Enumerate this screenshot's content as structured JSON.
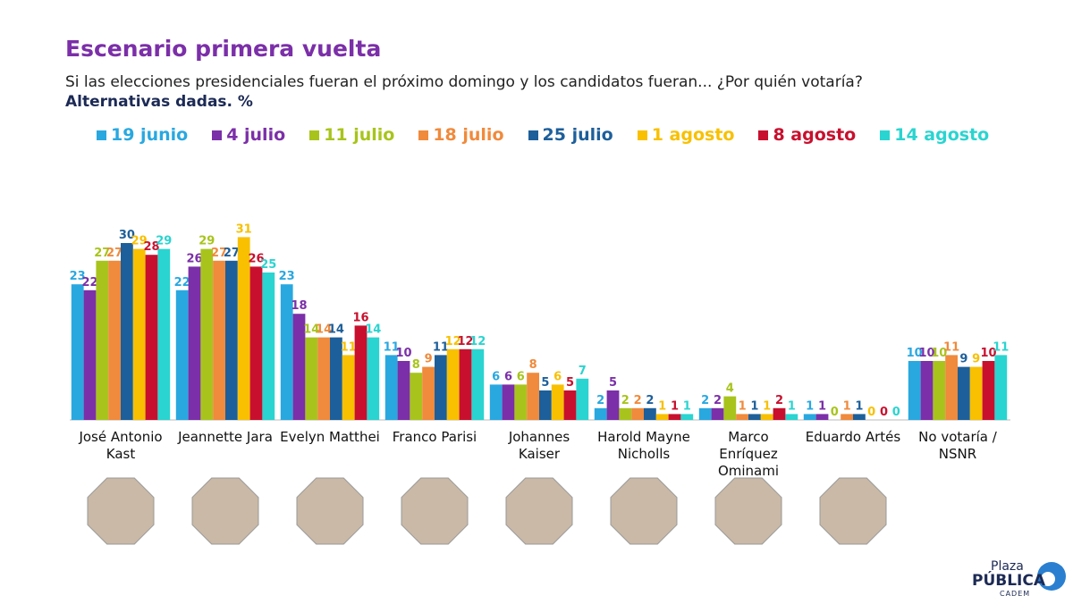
{
  "chart_data": {
    "type": "bar",
    "title": "Escenario primera vuelta",
    "subtitle": "Si las elecciones presidenciales fueran el próximo domingo y los candidatos fueran... ¿Por quién votaría?",
    "note": "Alternativas dadas. %",
    "categories": [
      "José Antonio Kast",
      "Jeannette Jara",
      "Evelyn Matthei",
      "Franco Parisi",
      "Johannes Kaiser",
      "Harold Mayne Nicholls",
      "Marco Enríquez Ominami",
      "Eduardo Artés",
      "No votaría / NSNR"
    ],
    "series": [
      {
        "name": "19 junio",
        "color": "#29a8e0",
        "values": [
          23,
          22,
          23,
          11,
          6,
          2,
          2,
          1,
          10
        ]
      },
      {
        "name": "4 julio",
        "color": "#7b2fa8",
        "values": [
          22,
          26,
          18,
          10,
          6,
          5,
          2,
          1,
          10
        ]
      },
      {
        "name": "11 julio",
        "color": "#a8c41c",
        "values": [
          27,
          29,
          14,
          8,
          6,
          2,
          4,
          0,
          10
        ]
      },
      {
        "name": "18 julio",
        "color": "#f08a3c",
        "values": [
          27,
          27,
          14,
          9,
          8,
          2,
          1,
          1,
          11
        ]
      },
      {
        "name": "25 julio",
        "color": "#1d5f9a",
        "values": [
          30,
          27,
          14,
          11,
          5,
          2,
          1,
          1,
          9
        ]
      },
      {
        "name": "1 agosto",
        "color": "#f8c000",
        "values": [
          29,
          31,
          11,
          12,
          6,
          1,
          1,
          0,
          9
        ]
      },
      {
        "name": "8 agosto",
        "color": "#c8102e",
        "values": [
          28,
          26,
          16,
          12,
          5,
          1,
          2,
          0,
          10
        ]
      },
      {
        "name": "14 agosto",
        "color": "#2ad4d0",
        "values": [
          29,
          25,
          14,
          12,
          7,
          1,
          1,
          0,
          11
        ]
      }
    ],
    "logo": [
      "Plaza",
      "PÚBLICA",
      "CADEM"
    ]
  }
}
